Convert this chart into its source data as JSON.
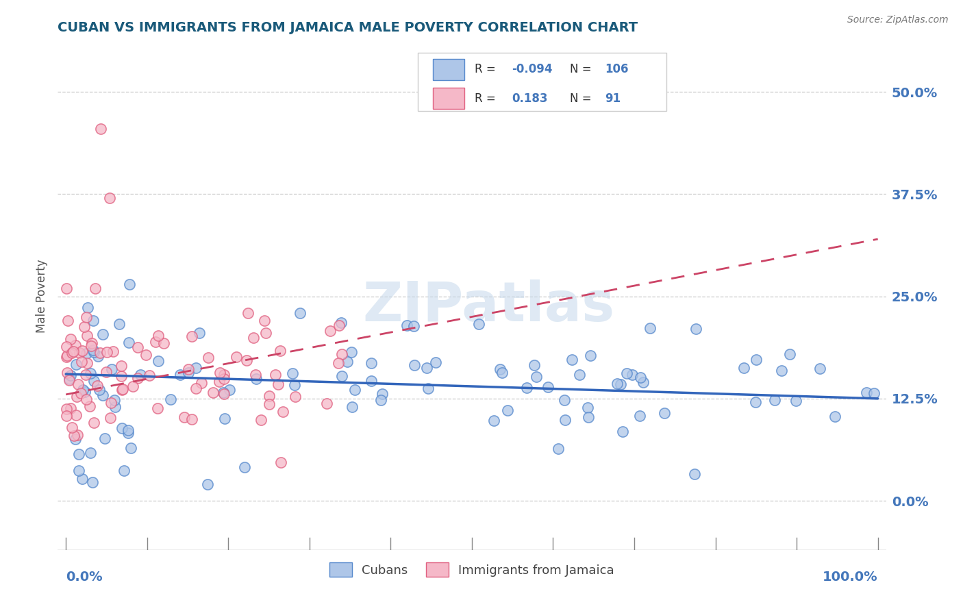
{
  "title": "CUBAN VS IMMIGRANTS FROM JAMAICA MALE POVERTY CORRELATION CHART",
  "source": "Source: ZipAtlas.com",
  "ylabel": "Male Poverty",
  "legend_cubans_R": "-0.094",
  "legend_cubans_N": "106",
  "legend_jamaica_R": "0.183",
  "legend_jamaica_N": "91",
  "legend_label_cubans": "Cubans",
  "legend_label_jamaica": "Immigrants from Jamaica",
  "cubans_color": "#aec6e8",
  "cubans_edge": "#5588cc",
  "jamaica_color": "#f5b8c8",
  "jamaica_edge": "#e06080",
  "cubans_line_color": "#3366bb",
  "jamaica_line_color": "#cc4466",
  "watermark": "ZIPatlas",
  "title_color": "#1a5a7a",
  "axis_label_color": "#4477bb",
  "right_axis_color": "#4477bb"
}
